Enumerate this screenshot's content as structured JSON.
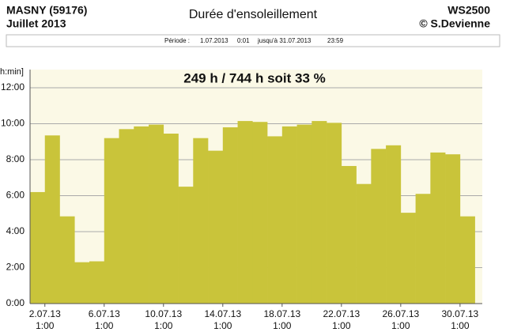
{
  "header": {
    "station": "MASNY (59176)",
    "month": "Juillet  2013",
    "title": "Durée d'ensoleillement",
    "device": "WS2500",
    "author": "© S.Devienne",
    "period": {
      "label": "Période :",
      "start_date": "1.07.2013",
      "start_time": "0:01",
      "until": "jusqu'à 31.07.2013",
      "end_time": "23:59"
    }
  },
  "chart_data": {
    "type": "bar",
    "y_label": "h:min]",
    "annotation": "249 h / 744 h  soit  33 %",
    "color": "#c9c43a",
    "grid": true,
    "values": [
      6.2,
      9.35,
      4.85,
      2.3,
      2.35,
      9.2,
      9.7,
      9.85,
      9.95,
      9.45,
      6.5,
      9.2,
      8.5,
      9.8,
      10.15,
      10.1,
      9.3,
      9.85,
      9.95,
      10.15,
      10.05,
      7.65,
      6.65,
      8.6,
      8.8,
      5.05,
      6.1,
      8.4,
      8.3,
      4.85
    ],
    "ylim": [
      0,
      12
    ],
    "yticks": [
      {
        "value": 0,
        "label": "0:00"
      },
      {
        "value": 2,
        "label": "2:00"
      },
      {
        "value": 4,
        "label": "4:00"
      },
      {
        "value": 6,
        "label": "6:00"
      },
      {
        "value": 8,
        "label": "8:00"
      },
      {
        "value": 10,
        "label": "10:00"
      },
      {
        "value": 12,
        "label": "12:00"
      }
    ],
    "xlim": [
      0,
      30.5
    ],
    "xticks": [
      {
        "value": 1,
        "label": "2.07.13"
      },
      {
        "value": 5,
        "label": "6.07.13"
      },
      {
        "value": 9,
        "label": "10.07.13"
      },
      {
        "value": 13,
        "label": "14.07.13"
      },
      {
        "value": 17,
        "label": "18.07.13"
      },
      {
        "value": 21,
        "label": "22.07.13"
      },
      {
        "value": 25,
        "label": "26.07.13"
      },
      {
        "value": 29,
        "label": "30.07.13"
      }
    ],
    "xtick_time": "1:00"
  }
}
